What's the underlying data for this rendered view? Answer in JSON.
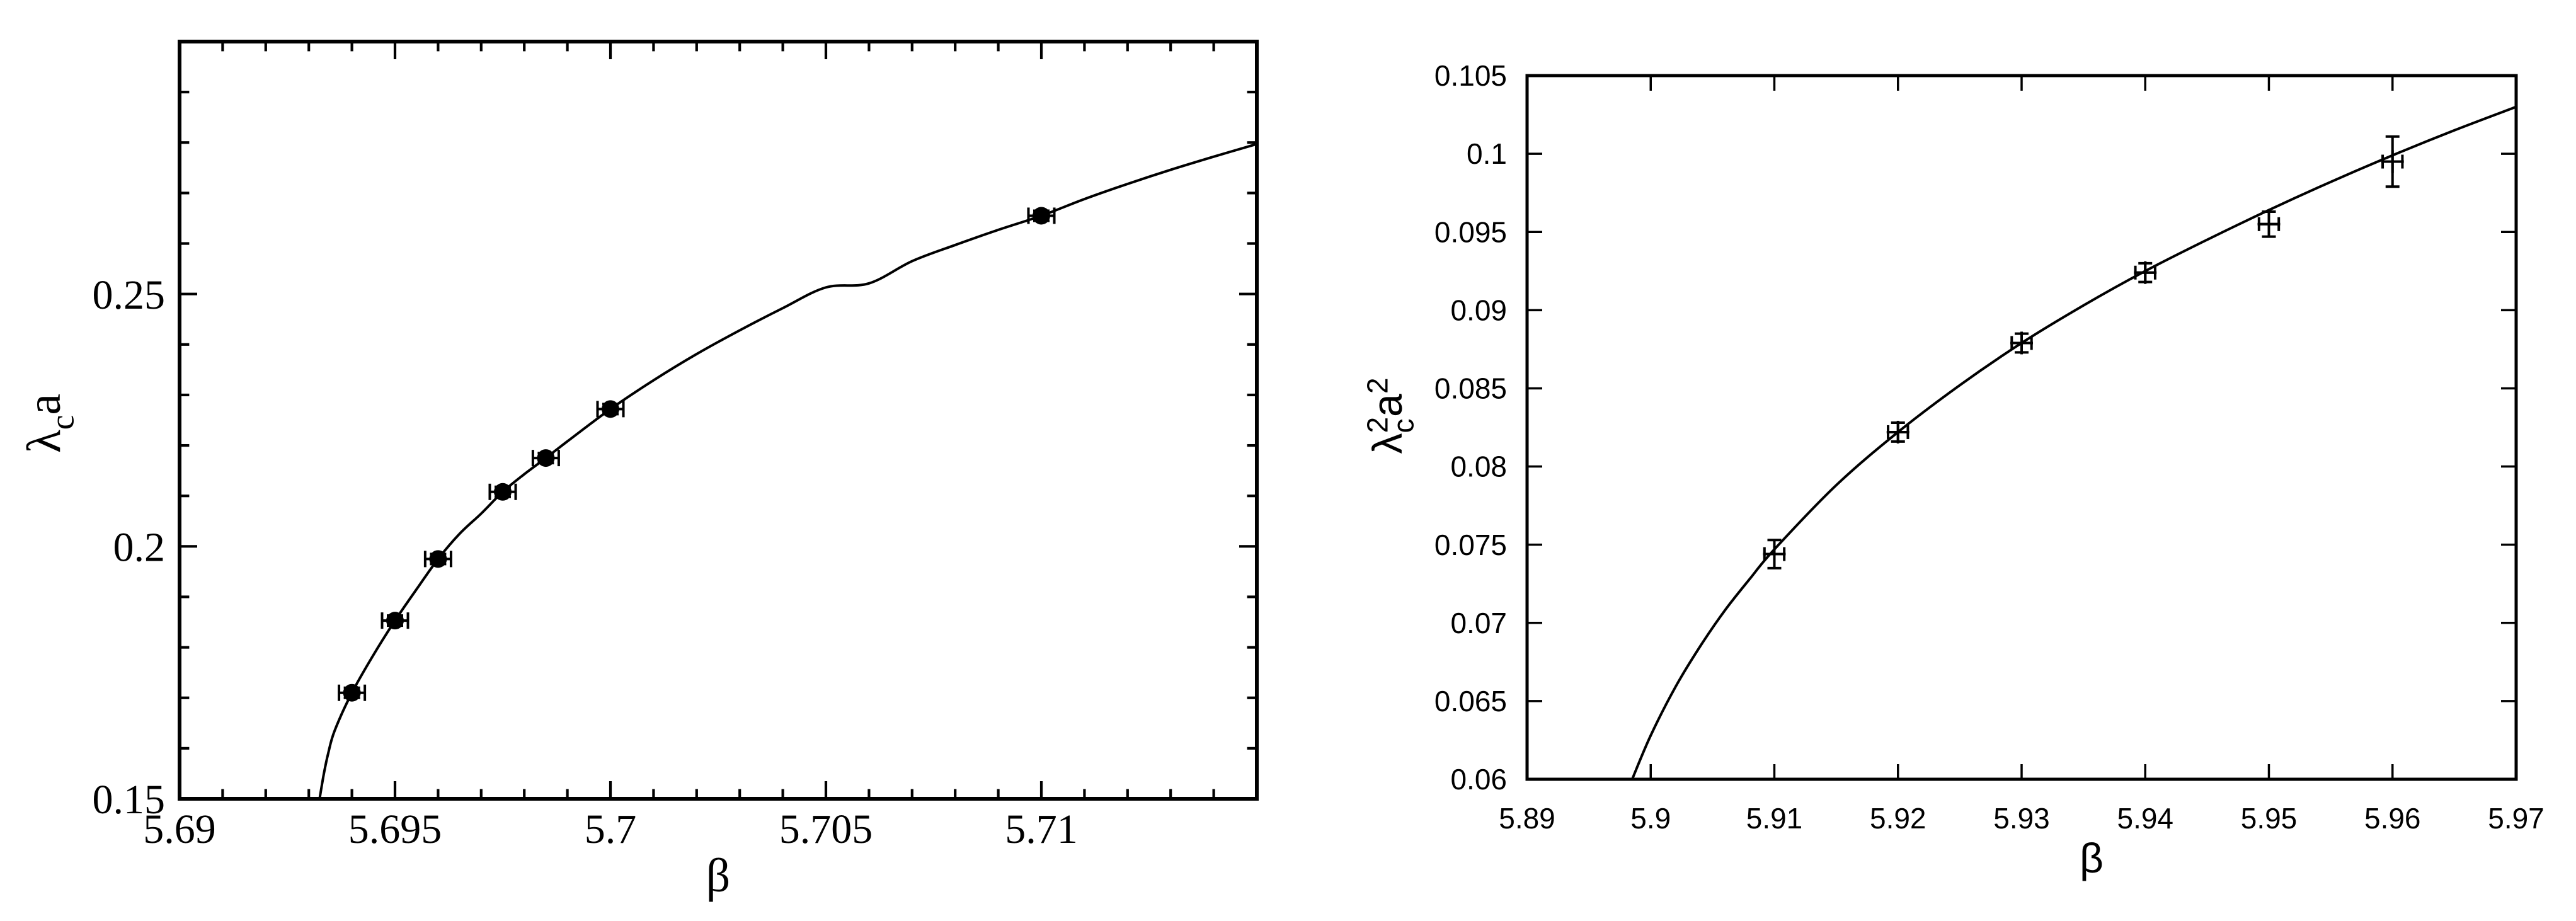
{
  "chart_data": [
    {
      "type": "scatter",
      "xlabel": "β",
      "ylabel_main": "λ",
      "ylabel_sub": "c",
      "ylabel_tail": "a",
      "xlim": [
        5.69,
        5.715
      ],
      "ylim": [
        0.15,
        0.3
      ],
      "xticks": [
        5.69,
        5.695,
        5.7,
        5.705,
        5.71
      ],
      "xtick_labels": [
        "5.69",
        "5.695",
        "5.7",
        "5.705",
        "5.71"
      ],
      "yticks": [
        0.15,
        0.2,
        0.25
      ],
      "ytick_labels": [
        "0.15",
        "0.2",
        "0.25"
      ],
      "marker": "filled-circle",
      "points": [
        {
          "x": 5.694,
          "y": 0.171,
          "xerr": 0.0003,
          "yerr": 0.001
        },
        {
          "x": 5.695,
          "y": 0.1853,
          "xerr": 0.0003,
          "yerr": 0.001
        },
        {
          "x": 5.696,
          "y": 0.1975,
          "xerr": 0.0003,
          "yerr": 0.001
        },
        {
          "x": 5.6975,
          "y": 0.2108,
          "xerr": 0.0003,
          "yerr": 0.001
        },
        {
          "x": 5.6985,
          "y": 0.2175,
          "xerr": 0.0003,
          "yerr": 0.001
        },
        {
          "x": 5.7,
          "y": 0.2272,
          "xerr": 0.0003,
          "yerr": 0.001
        },
        {
          "x": 5.71,
          "y": 0.2655,
          "xerr": 0.0003,
          "yerr": 0.001
        }
      ],
      "fit_curve": [
        [
          5.69325,
          0.15
        ],
        [
          5.69335,
          0.155
        ],
        [
          5.69345,
          0.159
        ],
        [
          5.6936,
          0.1635
        ],
        [
          5.694,
          0.171
        ],
        [
          5.6945,
          0.1785
        ],
        [
          5.695,
          0.1853
        ],
        [
          5.6955,
          0.1915
        ],
        [
          5.696,
          0.1975
        ],
        [
          5.6965,
          0.2025
        ],
        [
          5.697,
          0.2065
        ],
        [
          5.6975,
          0.2108
        ],
        [
          5.698,
          0.2143
        ],
        [
          5.6985,
          0.2175
        ],
        [
          5.699,
          0.2208
        ],
        [
          5.7,
          0.2272
        ],
        [
          5.701,
          0.2329
        ],
        [
          5.702,
          0.2381
        ],
        [
          5.703,
          0.2428
        ],
        [
          5.704,
          0.2472
        ],
        [
          5.705,
          0.2513
        ],
        [
          5.706,
          0.2521
        ],
        [
          5.707,
          0.2565
        ],
        [
          5.708,
          0.2597
        ],
        [
          5.709,
          0.2627
        ],
        [
          5.71,
          0.2655
        ],
        [
          5.711,
          0.2688
        ],
        [
          5.712,
          0.2718
        ],
        [
          5.713,
          0.2746
        ],
        [
          5.714,
          0.2772
        ],
        [
          5.715,
          0.2797
        ]
      ]
    },
    {
      "type": "scatter",
      "xlabel": "β",
      "ylabel_main": "λ",
      "ylabel_sub": "c",
      "ylabel_sup": "2",
      "ylabel_tail": "a",
      "ylabel_tail_sup": "2",
      "xlim": [
        5.89,
        5.97
      ],
      "ylim": [
        0.06,
        0.105
      ],
      "xticks": [
        5.89,
        5.9,
        5.91,
        5.92,
        5.93,
        5.94,
        5.95,
        5.96,
        5.97
      ],
      "xtick_labels": [
        "5.89",
        "5.9",
        "5.91",
        "5.92",
        "5.93",
        "5.94",
        "5.95",
        "5.96",
        "5.97"
      ],
      "yticks": [
        0.06,
        0.065,
        0.07,
        0.075,
        0.08,
        0.085,
        0.09,
        0.095,
        0.1,
        0.105
      ],
      "ytick_labels": [
        "0.06",
        "0.065",
        "0.07",
        "0.075",
        "0.08",
        "0.085",
        "0.09",
        "0.095",
        "0.1",
        "0.105"
      ],
      "marker": "plus",
      "points": [
        {
          "x": 5.91,
          "y": 0.0744,
          "xerr": 0.0008,
          "yerr": 0.0009
        },
        {
          "x": 5.92,
          "y": 0.0822,
          "xerr": 0.0008,
          "yerr": 0.0006
        },
        {
          "x": 5.93,
          "y": 0.0879,
          "xerr": 0.0008,
          "yerr": 0.0006
        },
        {
          "x": 5.94,
          "y": 0.0924,
          "xerr": 0.0008,
          "yerr": 0.0006
        },
        {
          "x": 5.95,
          "y": 0.0955,
          "xerr": 0.0008,
          "yerr": 0.0008
        },
        {
          "x": 5.96,
          "y": 0.0995,
          "xerr": 0.0008,
          "yerr": 0.0016
        }
      ],
      "fit_curve": [
        [
          5.8985,
          0.06
        ],
        [
          5.9,
          0.0628
        ],
        [
          5.902,
          0.0659
        ],
        [
          5.904,
          0.0685
        ],
        [
          5.906,
          0.0708
        ],
        [
          5.908,
          0.0728
        ],
        [
          5.91,
          0.0747
        ],
        [
          5.915,
          0.0788
        ],
        [
          5.92,
          0.0822
        ],
        [
          5.925,
          0.0852
        ],
        [
          5.93,
          0.0879
        ],
        [
          5.935,
          0.0903
        ],
        [
          5.94,
          0.0925
        ],
        [
          5.945,
          0.0945
        ],
        [
          5.95,
          0.0964
        ],
        [
          5.955,
          0.0982
        ],
        [
          5.96,
          0.0999
        ],
        [
          5.965,
          0.1015
        ],
        [
          5.97,
          0.103
        ]
      ]
    }
  ]
}
